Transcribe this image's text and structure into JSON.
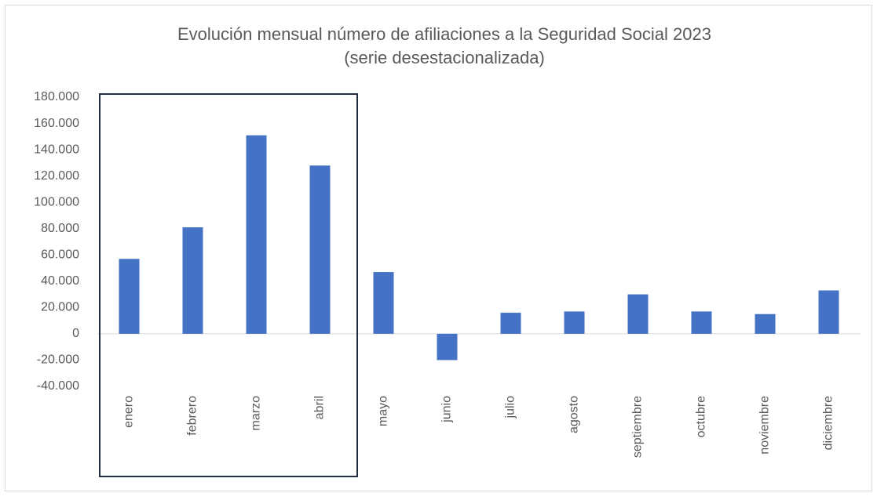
{
  "chart_data": {
    "type": "bar",
    "title": "Evolución mensual número de afiliaciones a la Seguridad Social 2023",
    "subtitle": "(serie desestacionalizada)",
    "categories": [
      "enero",
      "febrero",
      "marzo",
      "abril",
      "mayo",
      "junio",
      "julio",
      "agosto",
      "septiembre",
      "octubre",
      "noviembre",
      "diciembre"
    ],
    "values": [
      57000,
      81000,
      151000,
      128000,
      47000,
      -20000,
      16000,
      17000,
      30000,
      17000,
      15000,
      33000
    ],
    "color": "#4472c4",
    "ylim": [
      -40000,
      180000
    ],
    "yticks": [
      {
        "value": -40000,
        "label": "-40.000"
      },
      {
        "value": -20000,
        "label": "-20.000"
      },
      0,
      {
        "value": 20000,
        "label": "20.000"
      },
      {
        "value": 40000,
        "label": "40.000"
      },
      {
        "value": 60000,
        "label": "60.000"
      },
      {
        "value": 80000,
        "label": "80.000"
      },
      {
        "value": 100000,
        "label": "100.000"
      },
      {
        "value": 120000,
        "label": "120.000"
      },
      {
        "value": 140000,
        "label": "140.000"
      },
      {
        "value": 160000,
        "label": "160.000"
      },
      {
        "value": 180000,
        "label": "180.000"
      }
    ],
    "grid": false
  }
}
